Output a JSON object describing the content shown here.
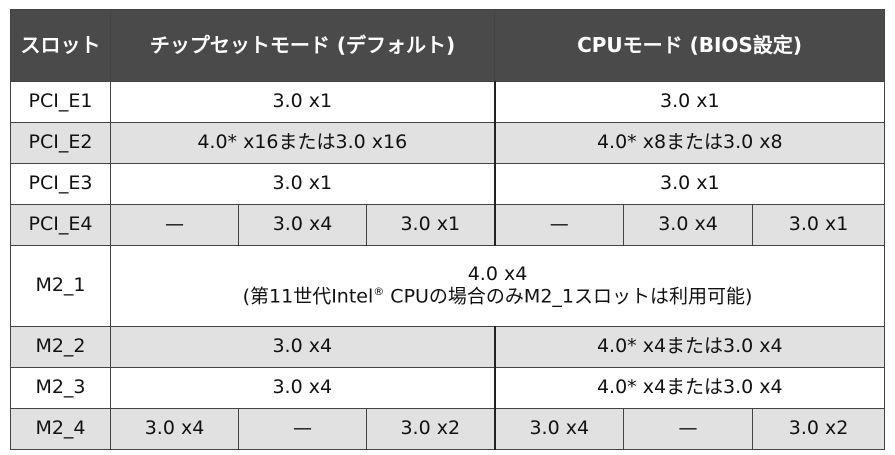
{
  "header": {
    "slot": "スロット",
    "chipset": "チップセットモード (デフォルト)",
    "cpu": "CPUモード (BIOS設定)"
  },
  "rows": {
    "pci_e1": {
      "label": "PCI_E1",
      "chipset": "3.0 x1",
      "cpu": "3.0 x1"
    },
    "pci_e2": {
      "label": "PCI_E2",
      "chipset": "4.0* x16または3.0 x16",
      "cpu": "4.0* x8または3.0 x8"
    },
    "pci_e3": {
      "label": "PCI_E3",
      "chipset": "3.0 x1",
      "cpu": "3.0 x1"
    },
    "pci_e4": {
      "label": "PCI_E4",
      "chipset": [
        "—",
        "3.0 x4",
        "3.0 x1"
      ],
      "cpu": [
        "—",
        "3.0 x4",
        "3.0 x1"
      ]
    },
    "m2_1": {
      "label": "M2_1",
      "line1": "4.0 x4",
      "line2_pre": "(第11世代Intel",
      "line2_sup": "®",
      "line2_post": " CPUの場合のみM2_1スロットは利用可能)"
    },
    "m2_2": {
      "label": "M2_2",
      "chipset": "3.0 x4",
      "cpu": "4.0* x4または3.0 x4"
    },
    "m2_3": {
      "label": "M2_3",
      "chipset": "3.0 x4",
      "cpu": "4.0* x4または3.0 x4"
    },
    "m2_4": {
      "label": "M2_4",
      "chipset": [
        "3.0 x4",
        "—",
        "3.0 x2"
      ],
      "cpu": [
        "3.0 x4",
        "—",
        "3.0 x2"
      ]
    }
  }
}
